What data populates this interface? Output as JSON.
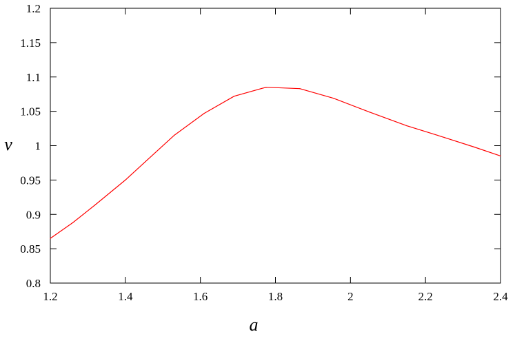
{
  "chart_data": {
    "type": "line",
    "xlabel": "a",
    "ylabel": "ν",
    "xlim": [
      1.2,
      2.4
    ],
    "ylim": [
      0.8,
      1.2
    ],
    "xticks": [
      1.2,
      1.4,
      1.6,
      1.8,
      2.0,
      2.2,
      2.4
    ],
    "xtick_labels": [
      "1.2",
      "1.4",
      "1.6",
      "1.8",
      "2",
      "2.2",
      "2.4"
    ],
    "yticks": [
      0.8,
      0.85,
      0.9,
      0.95,
      1.0,
      1.05,
      1.1,
      1.15,
      1.2
    ],
    "ytick_labels": [
      "0.8",
      "0.85",
      "0.9",
      "0.95",
      "1",
      "1.05",
      "1.1",
      "1.15",
      "1.2"
    ],
    "grid": false,
    "legend": "none",
    "series": [
      {
        "color": "#ff0000",
        "x": [
          1.2,
          1.26,
          1.32,
          1.4,
          1.46,
          1.53,
          1.61,
          1.69,
          1.775,
          1.865,
          1.955,
          2.05,
          2.15,
          2.25,
          2.33,
          2.4
        ],
        "y": [
          0.865,
          0.888,
          0.914,
          0.95,
          0.98,
          1.015,
          1.047,
          1.072,
          1.085,
          1.083,
          1.069,
          1.049,
          1.029,
          1.012,
          0.998,
          0.985
        ]
      }
    ]
  }
}
